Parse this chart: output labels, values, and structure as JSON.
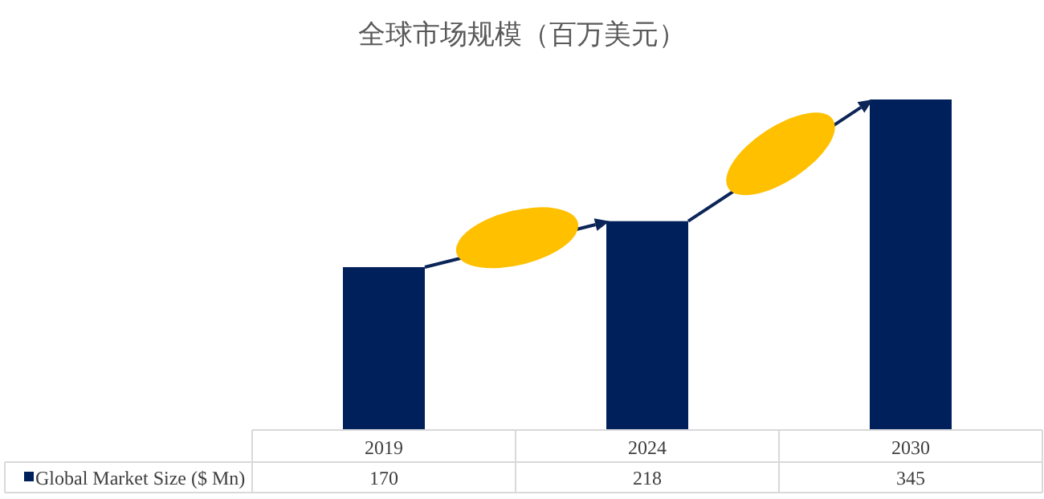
{
  "chart_data": {
    "type": "bar",
    "title": "全球市场规模（百万美元）",
    "categories": [
      "2019",
      "2024",
      "2030"
    ],
    "series": [
      {
        "name": "Global Market Size ($ Mn)",
        "color": "#00205b",
        "values": [
          170,
          218,
          345
        ]
      }
    ],
    "data_labels": true,
    "legend": "bottom left"
  }
}
